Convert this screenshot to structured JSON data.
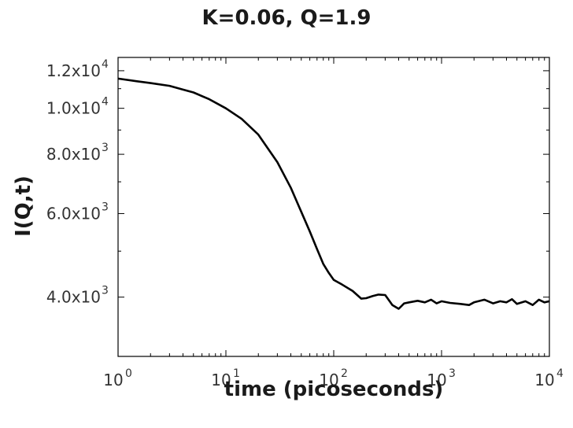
{
  "chart_data": {
    "type": "line",
    "title": "K=0.06, Q=1.9",
    "xlabel": "time (picoseconds)",
    "ylabel": "I(Q,t)",
    "xscale": "log",
    "yscale": "log",
    "xlim": [
      1,
      10000
    ],
    "ylim": [
      3000,
      12800
    ],
    "grid": false,
    "x_ticks": [
      {
        "base": "10",
        "exp": "0",
        "value": 1
      },
      {
        "base": "10",
        "exp": "1",
        "value": 10
      },
      {
        "base": "10",
        "exp": "2",
        "value": 100
      },
      {
        "base": "10",
        "exp": "3",
        "value": 1000
      },
      {
        "base": "10",
        "exp": "4",
        "value": 10000
      }
    ],
    "y_ticks": [
      {
        "mantissa": "4.0x10",
        "exp": "3",
        "value": 4000
      },
      {
        "mantissa": "6.0x10",
        "exp": "3",
        "value": 6000
      },
      {
        "mantissa": "8.0x10",
        "exp": "3",
        "value": 8000
      },
      {
        "mantissa": "1.0x10",
        "exp": "4",
        "value": 10000
      },
      {
        "mantissa": "1.2x10",
        "exp": "4",
        "value": 12000
      }
    ],
    "series": [
      {
        "color": "#000000",
        "x": [
          1,
          1.5,
          2,
          3,
          4,
          5,
          7,
          10,
          14,
          20,
          30,
          40,
          50,
          60,
          70,
          80,
          90,
          100,
          120,
          150,
          180,
          200,
          230,
          260,
          300,
          350,
          400,
          450,
          500,
          600,
          700,
          800,
          900,
          1000,
          1200,
          1500,
          1800,
          2000,
          2500,
          3000,
          3500,
          4000,
          4500,
          5000,
          6000,
          7000,
          8000,
          9000,
          10000
        ],
        "y": [
          11550,
          11400,
          11300,
          11150,
          10950,
          10800,
          10450,
          10000,
          9500,
          8800,
          7700,
          6800,
          6050,
          5500,
          5050,
          4700,
          4500,
          4350,
          4250,
          4120,
          3970,
          3980,
          4020,
          4050,
          4040,
          3850,
          3780,
          3880,
          3900,
          3930,
          3900,
          3950,
          3880,
          3920,
          3890,
          3870,
          3850,
          3900,
          3950,
          3880,
          3920,
          3900,
          3960,
          3870,
          3920,
          3850,
          3950,
          3900,
          3920
        ]
      }
    ]
  }
}
